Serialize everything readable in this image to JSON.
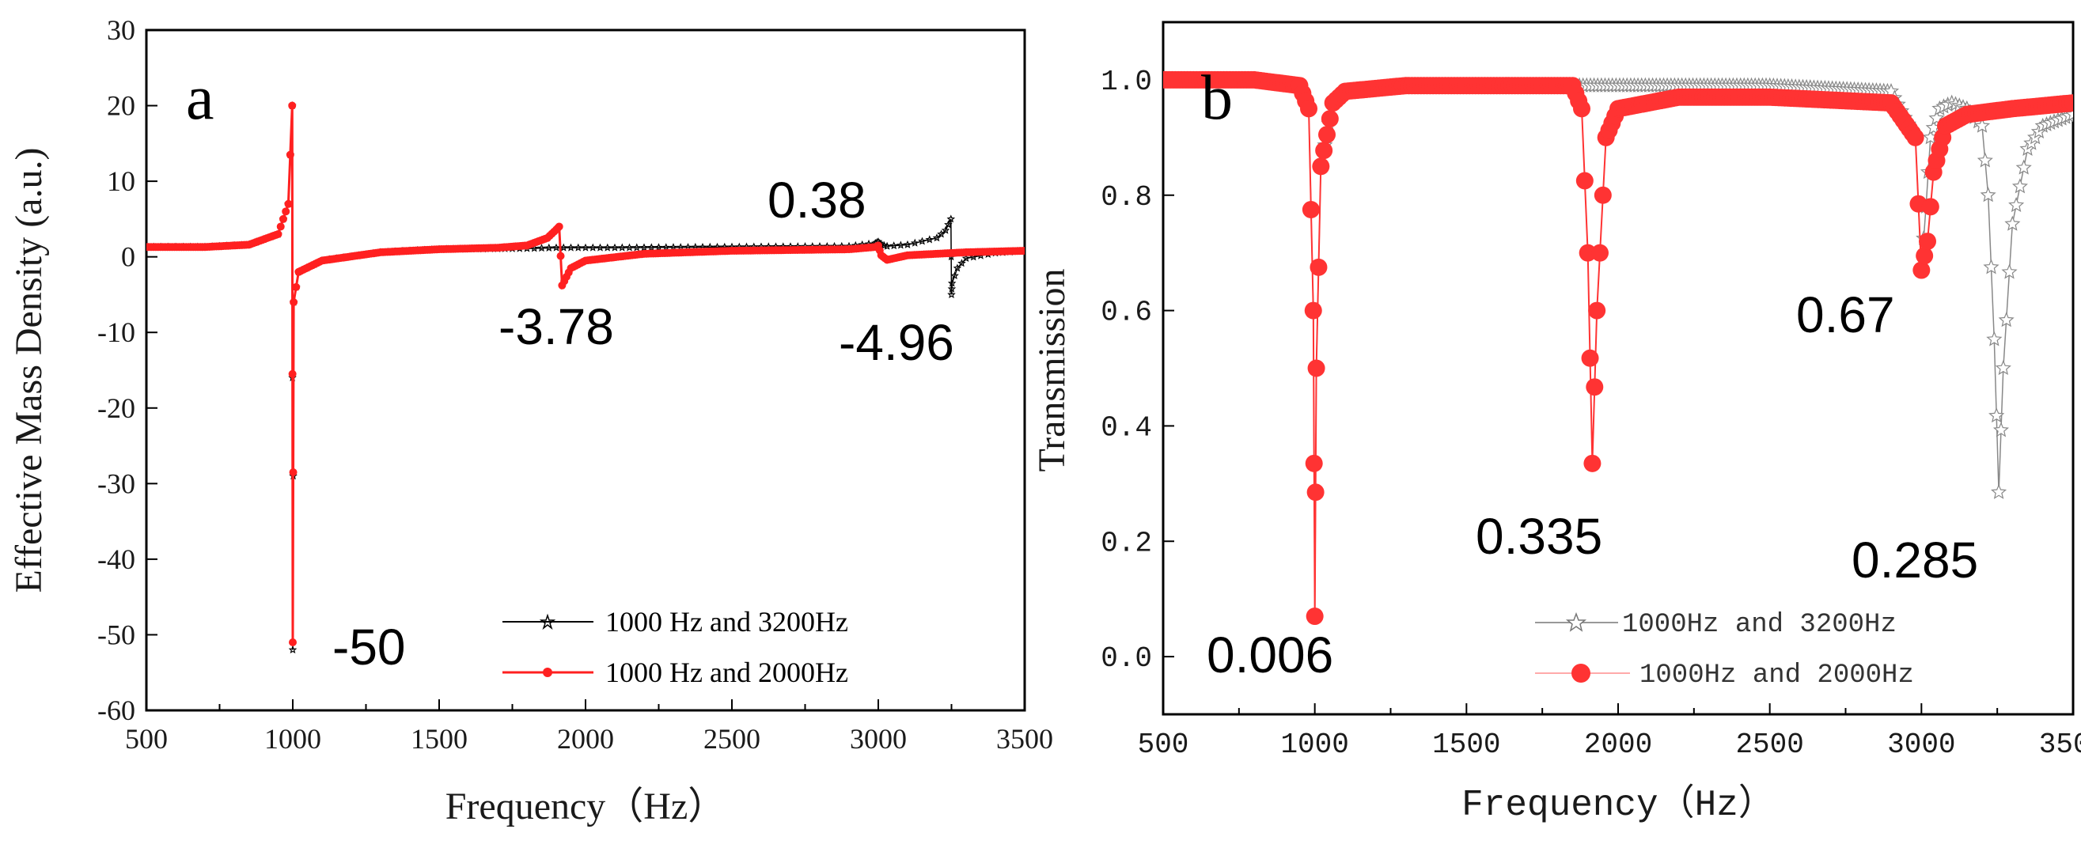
{
  "chart_data": [
    {
      "type": "line",
      "panel": "a",
      "xlabel": "Frequency（Hz）",
      "ylabel": "Effective Mass Density (a.u.)",
      "xlim": [
        500,
        3500
      ],
      "ylim": [
        -60,
        30
      ],
      "xticks": [
        "500",
        "1000",
        "1500",
        "2000",
        "2500",
        "3000",
        "3500"
      ],
      "yticks": [
        "-60",
        "-50",
        "-40",
        "-30",
        "-20",
        "-10",
        "0",
        "10",
        "20",
        "30"
      ],
      "legend_position": "bottom-right",
      "annotations": [
        {
          "text": "0.38"
        },
        {
          "text": "-3.78"
        },
        {
          "text": "-4.96"
        },
        {
          "text": "-50"
        }
      ],
      "series": [
        {
          "name": "1000 Hz and 3200Hz",
          "color": "#000000",
          "marker": "star",
          "x": [
            500,
            700,
            850,
            950,
            985,
            998,
            1000,
            1003,
            1020,
            1100,
            1300,
            1500,
            1800,
            1900,
            1950,
            2100,
            2500,
            2900,
            2990,
            3000,
            3010,
            3030,
            3100,
            3200,
            3230,
            3248,
            3250,
            3252,
            3270,
            3300,
            3400,
            3500
          ],
          "values": [
            1.3,
            1.3,
            1.6,
            3,
            7,
            20,
            -52,
            -6,
            -2,
            -0.5,
            0.6,
            1,
            1.1,
            1.2,
            1.2,
            1.2,
            1.3,
            1.4,
            1.8,
            2,
            1.6,
            1.4,
            1.6,
            2.5,
            3.5,
            5,
            -5,
            -3.5,
            -1.5,
            -0.2,
            0.5,
            0.8
          ]
        },
        {
          "name": "1000 Hz and 2000Hz",
          "color": "#ff2020",
          "marker": "circle",
          "x": [
            500,
            700,
            850,
            950,
            985,
            998,
            1000,
            1003,
            1020,
            1100,
            1300,
            1500,
            1700,
            1800,
            1870,
            1900,
            1910,
            1920,
            1950,
            2000,
            2200,
            2500,
            2900,
            2990,
            3000,
            3010,
            3030,
            3100,
            3300,
            3500
          ],
          "values": [
            1.3,
            1.3,
            1.6,
            3,
            7,
            20,
            -51,
            -6,
            -2,
            -0.5,
            0.6,
            1,
            1.2,
            1.5,
            2.5,
            3.6,
            4,
            -3.78,
            -1.5,
            -0.5,
            0.4,
            0.8,
            1,
            1.3,
            1.5,
            0.2,
            -0.4,
            0.2,
            0.6,
            0.8
          ]
        }
      ]
    },
    {
      "type": "line",
      "panel": "b",
      "xlabel": "Frequency（Hz）",
      "ylabel": "Transmission",
      "xlim": [
        500,
        3500
      ],
      "ylim": [
        -0.1,
        1.1
      ],
      "xticks": [
        "500",
        "1000",
        "1500",
        "2000",
        "2500",
        "3000",
        "3500"
      ],
      "yticks": [
        "0.0",
        "0.2",
        "0.4",
        "0.6",
        "0.8",
        "1.0"
      ],
      "legend_position": "bottom-right",
      "annotations": [
        {
          "text": "0.006"
        },
        {
          "text": "0.335"
        },
        {
          "text": "0.67"
        },
        {
          "text": "0.285"
        }
      ],
      "series": [
        {
          "name": "1000Hz and 3200Hz",
          "color": "#888888",
          "marker": "star",
          "x": [
            500,
            800,
            950,
            980,
            995,
            1000,
            1005,
            1020,
            1060,
            1100,
            1300,
            1800,
            2500,
            2900,
            2980,
            3000,
            3015,
            3030,
            3060,
            3100,
            3150,
            3200,
            3220,
            3240,
            3255,
            3270,
            3300,
            3350,
            3400,
            3500
          ],
          "values": [
            1.0,
            1.0,
            0.99,
            0.95,
            0.6,
            0.07,
            0.5,
            0.85,
            0.96,
            0.98,
            0.99,
            0.99,
            0.99,
            0.98,
            0.9,
            0.67,
            0.78,
            0.9,
            0.95,
            0.96,
            0.95,
            0.92,
            0.8,
            0.55,
            0.285,
            0.5,
            0.75,
            0.88,
            0.92,
            0.94
          ]
        },
        {
          "name": "1000Hz and 2000Hz",
          "color": "#ff3333",
          "marker": "circle",
          "x": [
            500,
            800,
            950,
            980,
            995,
            1000,
            1005,
            1020,
            1060,
            1100,
            1300,
            1600,
            1800,
            1850,
            1880,
            1900,
            1915,
            1930,
            1960,
            2000,
            2200,
            2500,
            2900,
            2980,
            3000,
            3020,
            3040,
            3080,
            3150,
            3300,
            3500
          ],
          "values": [
            1.0,
            1.0,
            0.99,
            0.95,
            0.6,
            0.07,
            0.5,
            0.85,
            0.96,
            0.98,
            0.99,
            0.99,
            0.99,
            0.99,
            0.95,
            0.7,
            0.335,
            0.6,
            0.9,
            0.95,
            0.97,
            0.97,
            0.96,
            0.9,
            0.67,
            0.72,
            0.84,
            0.92,
            0.94,
            0.95,
            0.96
          ]
        }
      ]
    }
  ]
}
